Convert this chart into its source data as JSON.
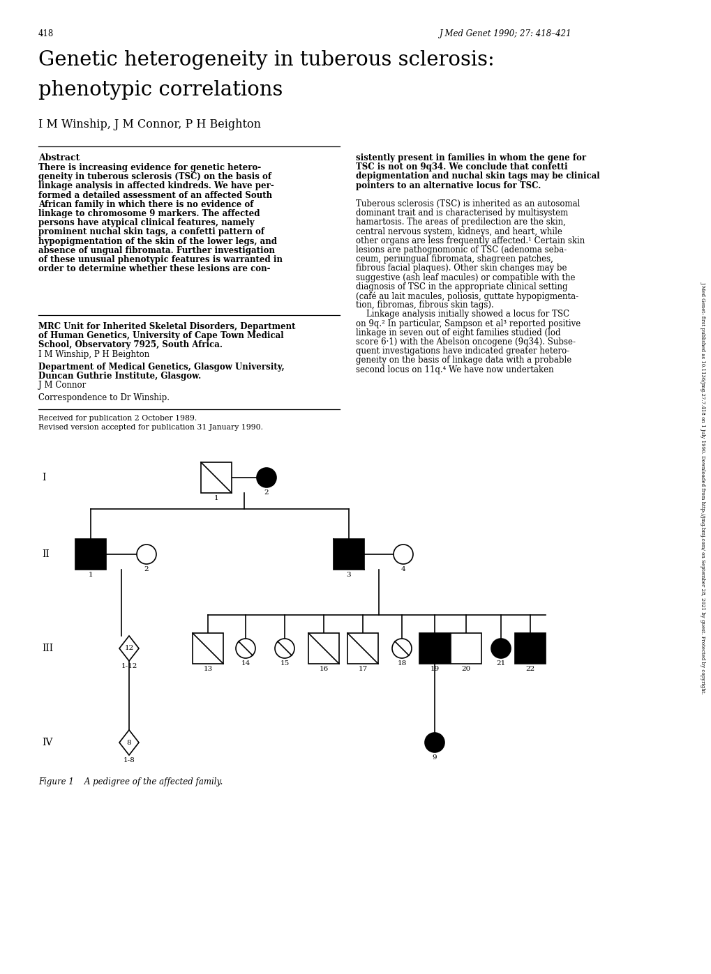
{
  "page_number": "418",
  "journal_header": "J Med Genet 1990; 27: 418–421",
  "title_line1": "Genetic heterogeneity in tuberous sclerosis:",
  "title_line2": "phenotypic correlations",
  "authors": "I M Winship, J M Connor, P H Beighton",
  "abstract_title": "Abstract",
  "left_col_abstract": [
    "There is increasing evidence for genetic hetero-",
    "geneity in tuberous sclerosis (TSC) on the basis of",
    "linkage analysis in affected kindreds. We have per-",
    "formed a detailed assessment of an affected South",
    "African family in which there is no evidence of",
    "linkage to chromosome 9 markers. The affected",
    "persons have atypical clinical features, namely",
    "prominent nuchal skin tags, a confetti pattern of",
    "hypopigmentation of the skin of the lower legs, and",
    "absence of ungual fibromata. Further investigation",
    "of these unusual phenotypic features is warranted in",
    "order to determine whether these lesions are con-"
  ],
  "right_col_abstract_bold": [
    "sistently present in families in whom the gene for",
    "TSC is not on 9q34. We conclude that confetti",
    "depigmentation and nuchal skin tags may be clinical",
    "pointers to an alternative locus for TSC."
  ],
  "right_col_body": [
    "Tuberous sclerosis (TSC) is inherited as an autosomal",
    "dominant trait and is characterised by multisystem",
    "hamartosis. The areas of predilection are the skin,",
    "central nervous system, kidneys, and heart, while",
    "other organs are less frequently affected.¹ Certain skin",
    "lesions are pathognomonic of TSC (adenoma seba-",
    "ceum, periungual fibromata, shagreen patches,",
    "fibrous facial plaques). Other skin changes may be",
    "suggestive (ash leaf macules) or compatible with the",
    "diagnosis of TSC in the appropriate clinical setting",
    "(café au lait macules, poliosis, guttate hypopigmenta-",
    "tion, fibromas, fibrous skin tags).",
    "    Linkage analysis initially showed a locus for TSC",
    "on 9q.² In particular, Sampson et al³ reported positive",
    "linkage in seven out of eight families studied (lod",
    "score 6·1) with the Abelson oncogene (9q34). Subse-",
    "quent investigations have indicated greater hetero-",
    "geneity on the basis of linkage data with a probable",
    "second locus on 11q.⁴ We have now undertaken"
  ],
  "affil1_bold_lines": [
    "MRC Unit for Inherited Skeletal Disorders, Department",
    "of Human Genetics, University of Cape Town Medical",
    "School, Observatory 7925, South Africa."
  ],
  "affil1_normal": "I M Winship, P H Beighton",
  "affil2_bold_lines": [
    "Department of Medical Genetics, Glasgow University,",
    "Duncan Guthrie Institute, Glasgow."
  ],
  "affil2_normal": "J M Connor",
  "correspondence": "Correspondence to Dr Winship.",
  "received_lines": [
    "Received for publication 2 October 1989.",
    "Revised version accepted for publication 31 January 1990."
  ],
  "figure_caption": "Figure 1    A pedigree of the affected family.",
  "sidebar_text": "J Med Genet: first published as 10.1136/jmg.27.7.418 on 1 July 1990. Downloaded from http://jmg.bmj.com/ on September 28, 2021 by guest. Protected by copyright.",
  "bg": "#ffffff"
}
